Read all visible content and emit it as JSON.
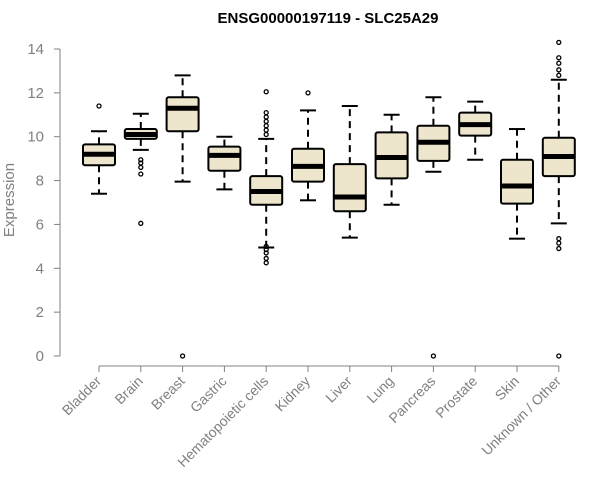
{
  "chart_data": {
    "type": "box",
    "title": "ENSG00000197119 - SLC25A29",
    "xlabel": "",
    "ylabel": "Expression",
    "ylim": [
      0,
      14
    ],
    "yticks": [
      "0",
      "2",
      "4",
      "6",
      "8",
      "10",
      "12",
      "14"
    ],
    "box_color": "#ede6cc",
    "categories": [
      "Bladder",
      "Brain",
      "Breast",
      "Gastric",
      "Hematopoietic cells",
      "Kidney",
      "Liver",
      "Lung",
      "Pancreas",
      "Prostate",
      "Skin",
      "Unknown / Other"
    ],
    "boxes": [
      {
        "whisker_low": 7.4,
        "q1": 8.7,
        "median": 9.2,
        "q3": 9.65,
        "whisker_high": 10.25,
        "outliers": [
          11.4
        ]
      },
      {
        "whisker_low": 9.4,
        "q1": 9.9,
        "median": 10.1,
        "q3": 10.35,
        "whisker_high": 11.05,
        "outliers": [
          6.05,
          8.3,
          8.6,
          8.8,
          8.95
        ]
      },
      {
        "whisker_low": 7.95,
        "q1": 10.25,
        "median": 11.3,
        "q3": 11.8,
        "whisker_high": 12.8,
        "outliers": [
          0.0
        ]
      },
      {
        "whisker_low": 7.6,
        "q1": 8.45,
        "median": 9.15,
        "q3": 9.55,
        "whisker_high": 10.0,
        "outliers": []
      },
      {
        "whisker_low": 4.95,
        "q1": 6.9,
        "median": 7.5,
        "q3": 8.2,
        "whisker_high": 9.9,
        "outliers": [
          4.25,
          4.45,
          4.7,
          4.85,
          5.0,
          10.1,
          10.3,
          10.5,
          10.7,
          10.9,
          11.1,
          12.05
        ]
      },
      {
        "whisker_low": 7.1,
        "q1": 7.95,
        "median": 8.65,
        "q3": 9.45,
        "whisker_high": 11.2,
        "outliers": [
          12.0
        ]
      },
      {
        "whisker_low": 5.4,
        "q1": 6.6,
        "median": 7.25,
        "q3": 8.75,
        "whisker_high": 11.4,
        "outliers": []
      },
      {
        "whisker_low": 6.9,
        "q1": 8.1,
        "median": 9.05,
        "q3": 10.2,
        "whisker_high": 11.0,
        "outliers": []
      },
      {
        "whisker_low": 8.4,
        "q1": 8.9,
        "median": 9.75,
        "q3": 10.5,
        "whisker_high": 11.8,
        "outliers": [
          0.0
        ]
      },
      {
        "whisker_low": 8.95,
        "q1": 10.05,
        "median": 10.55,
        "q3": 11.1,
        "whisker_high": 11.6,
        "outliers": []
      },
      {
        "whisker_low": 5.35,
        "q1": 6.95,
        "median": 7.75,
        "q3": 8.95,
        "whisker_high": 10.35,
        "outliers": []
      },
      {
        "whisker_low": 6.05,
        "q1": 8.2,
        "median": 9.1,
        "q3": 9.95,
        "whisker_high": 12.6,
        "outliers": [
          0.0,
          4.9,
          5.15,
          5.35,
          12.8,
          13.05,
          13.35,
          13.6,
          14.3
        ]
      }
    ]
  }
}
